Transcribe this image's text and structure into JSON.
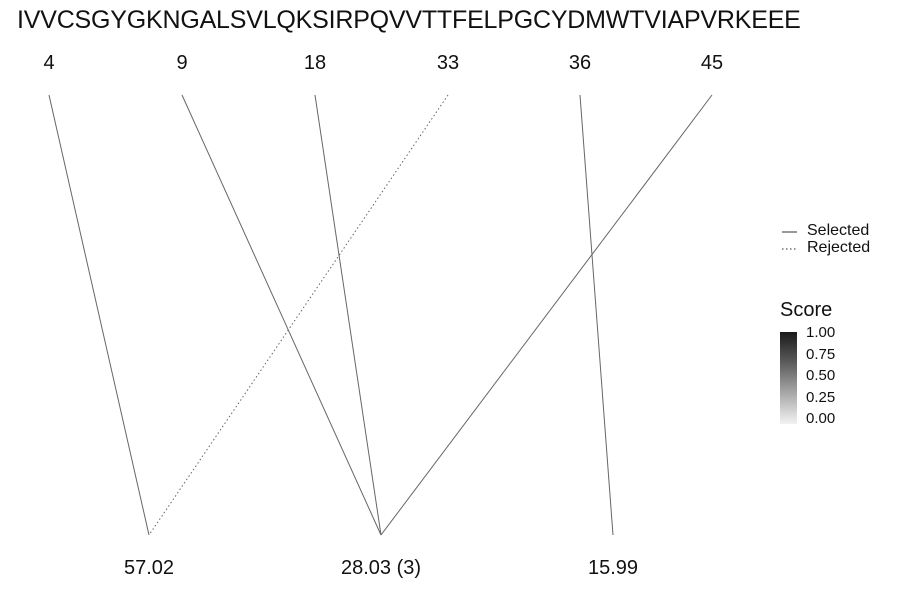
{
  "sequence": "IVVCSGYGKNGALSVLQKSIRPQVVTTFELPGCYDMWTVIAPVRKEEE",
  "positions": [
    "4",
    "9",
    "18",
    "33",
    "36",
    "45"
  ],
  "bottom_labels": [
    "57.02",
    "28.03 (3)",
    "15.99"
  ],
  "links": [
    {
      "from": 0,
      "to": 0,
      "style": "Selected"
    },
    {
      "from": 1,
      "to": 1,
      "style": "Selected"
    },
    {
      "from": 2,
      "to": 1,
      "style": "Selected"
    },
    {
      "from": 3,
      "to": 0,
      "style": "Rejected"
    },
    {
      "from": 4,
      "to": 2,
      "style": "Selected"
    },
    {
      "from": 5,
      "to": 1,
      "style": "Selected"
    }
  ],
  "legend": {
    "selected": "Selected",
    "rejected": "Rejected",
    "score_title": "Score",
    "score_ticks": [
      "1.00",
      "0.75",
      "0.50",
      "0.25",
      "0.00"
    ]
  },
  "colors": {
    "line": "#666666",
    "text": "#111111"
  }
}
